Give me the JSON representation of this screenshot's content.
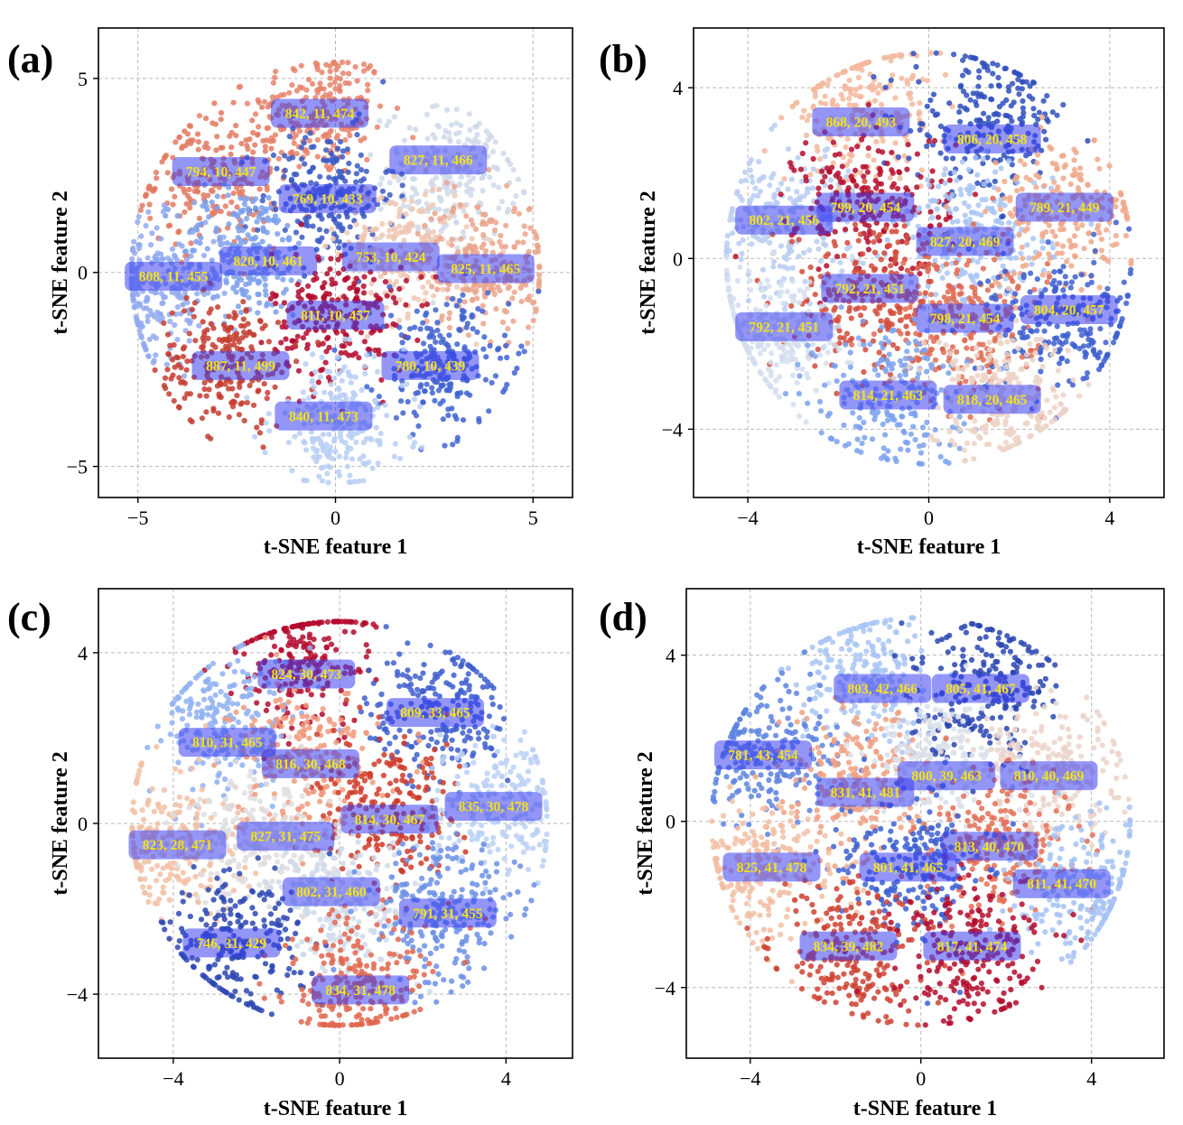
{
  "figure": {
    "description_free": true
  },
  "chart_data": [
    {
      "id": "a",
      "panel_label": "(a)",
      "type": "scatter",
      "xlabel": "t-SNE feature 1",
      "ylabel": "t-SNE feature 2",
      "xlim": [
        -6,
        6
      ],
      "ylim": [
        -5.8,
        6.3
      ],
      "xticks": [
        -5,
        0,
        5
      ],
      "yticks": [
        -5,
        0,
        5
      ],
      "xtick_labels": [
        "−5",
        "0",
        "5"
      ],
      "ytick_labels": [
        "−5",
        "0",
        "5"
      ],
      "grid": true,
      "clusters": [
        {
          "cx": -0.4,
          "cy": 4.1,
          "color": "#e8826a"
        },
        {
          "cx": -3.1,
          "cy": 2.4,
          "color": "#e27a62"
        },
        {
          "cx": 2.9,
          "cy": 2.5,
          "color": "#cfd9ea"
        },
        {
          "cx": -0.2,
          "cy": 2.0,
          "color": "#3a59c4"
        },
        {
          "cx": -2.3,
          "cy": 0.5,
          "color": "#7da0ec"
        },
        {
          "cx": -4.5,
          "cy": -0.4,
          "color": "#92aaf0"
        },
        {
          "cx": 1.8,
          "cy": 0.6,
          "color": "#efc8b4"
        },
        {
          "cx": 3.8,
          "cy": 0.2,
          "color": "#eaa58c"
        },
        {
          "cx": 0.1,
          "cy": -1.1,
          "color": "#b40b2e"
        },
        {
          "cx": -2.8,
          "cy": -2.3,
          "color": "#c43d30"
        },
        {
          "cx": 2.7,
          "cy": -2.4,
          "color": "#3f63d2"
        },
        {
          "cx": 0.1,
          "cy": -3.9,
          "color": "#b8cff5"
        }
      ],
      "annotations": [
        {
          "x": -0.4,
          "y": 4.1,
          "text": "842, 11, 474"
        },
        {
          "x": -2.9,
          "y": 2.6,
          "text": "794, 10, 447"
        },
        {
          "x": 2.6,
          "y": 2.9,
          "text": "827, 11, 466"
        },
        {
          "x": -0.2,
          "y": 1.9,
          "text": "769, 10, 433"
        },
        {
          "x": -1.7,
          "y": 0.3,
          "text": "820, 10, 461"
        },
        {
          "x": -4.1,
          "y": -0.1,
          "text": "808, 11, 455"
        },
        {
          "x": 1.4,
          "y": 0.4,
          "text": "753, 10, 424"
        },
        {
          "x": 3.8,
          "y": 0.1,
          "text": "825, 11, 465"
        },
        {
          "x": 0.0,
          "y": -1.1,
          "text": "811, 10, 457"
        },
        {
          "x": -2.4,
          "y": -2.4,
          "text": "887, 11, 499"
        },
        {
          "x": 2.4,
          "y": -2.4,
          "text": "780, 10, 439"
        },
        {
          "x": -0.3,
          "y": -3.7,
          "text": "840, 11, 473"
        }
      ]
    },
    {
      "id": "b",
      "panel_label": "(b)",
      "type": "scatter",
      "xlabel": "t-SNE feature 1",
      "ylabel": "t-SNE feature 2",
      "xlim": [
        -5.2,
        5.2
      ],
      "ylim": [
        -5.6,
        5.4
      ],
      "xticks": [
        -4,
        0,
        4
      ],
      "yticks": [
        -4,
        0,
        4
      ],
      "xtick_labels": [
        "−4",
        "0",
        "4"
      ],
      "ytick_labels": [
        "−4",
        "0",
        "4"
      ],
      "grid": true,
      "clusters": [
        {
          "cx": -1.5,
          "cy": 3.4,
          "color": "#f3b99e"
        },
        {
          "cx": 1.3,
          "cy": 3.2,
          "color": "#2f4fbd"
        },
        {
          "cx": -3.2,
          "cy": 0.9,
          "color": "#b9cdf1"
        },
        {
          "cx": -1.2,
          "cy": 1.3,
          "color": "#b50c2c"
        },
        {
          "cx": 1.0,
          "cy": 0.5,
          "color": "#a9c5f6"
        },
        {
          "cx": 3.0,
          "cy": 1.0,
          "color": "#f0a88a"
        },
        {
          "cx": -1.3,
          "cy": -0.8,
          "color": "#d24a3a"
        },
        {
          "cx": 0.8,
          "cy": -1.4,
          "color": "#e16b52"
        },
        {
          "cx": 3.0,
          "cy": -1.5,
          "color": "#3d5fd0"
        },
        {
          "cx": -3.4,
          "cy": -1.8,
          "color": "#d4deee"
        },
        {
          "cx": -0.8,
          "cy": -3.2,
          "color": "#7aa1ee"
        },
        {
          "cx": 1.6,
          "cy": -3.2,
          "color": "#ecd2c6"
        }
      ],
      "annotations": [
        {
          "x": -1.5,
          "y": 3.2,
          "text": "868, 20, 493"
        },
        {
          "x": 1.4,
          "y": 2.8,
          "text": "806, 20, 458"
        },
        {
          "x": -3.2,
          "y": 0.9,
          "text": "802, 21, 456"
        },
        {
          "x": -1.4,
          "y": 1.2,
          "text": "799, 20, 454"
        },
        {
          "x": 3.0,
          "y": 1.2,
          "text": "789, 21, 449"
        },
        {
          "x": 0.8,
          "y": 0.4,
          "text": "827, 20, 469"
        },
        {
          "x": -1.3,
          "y": -0.7,
          "text": "792, 21, 451"
        },
        {
          "x": 0.8,
          "y": -1.4,
          "text": "798, 21, 454"
        },
        {
          "x": 3.1,
          "y": -1.2,
          "text": "804, 20, 457"
        },
        {
          "x": -3.2,
          "y": -1.6,
          "text": "792, 21, 451"
        },
        {
          "x": -0.9,
          "y": -3.2,
          "text": "814, 21, 463"
        },
        {
          "x": 1.4,
          "y": -3.3,
          "text": "818, 20, 465"
        }
      ]
    },
    {
      "id": "c",
      "panel_label": "(c)",
      "type": "scatter",
      "xlabel": "t-SNE feature 1",
      "ylabel": "t-SNE feature 2",
      "xlim": [
        -5.8,
        5.6
      ],
      "ylim": [
        -5.5,
        5.5
      ],
      "xticks": [
        -4,
        0,
        4
      ],
      "yticks": [
        -4,
        0,
        4
      ],
      "xtick_labels": [
        "−4",
        "0",
        "4"
      ],
      "ytick_labels": [
        "−4",
        "0",
        "4"
      ],
      "grid": true,
      "clusters": [
        {
          "cx": -0.9,
          "cy": 3.9,
          "color": "#b40a2d"
        },
        {
          "cx": 2.4,
          "cy": 2.6,
          "color": "#3e5ecf"
        },
        {
          "cx": -2.7,
          "cy": 2.3,
          "color": "#8fb0f2"
        },
        {
          "cx": -0.8,
          "cy": 1.5,
          "color": "#f09a7c"
        },
        {
          "cx": 1.2,
          "cy": 0.2,
          "color": "#cf3c2c"
        },
        {
          "cx": 3.8,
          "cy": 0.4,
          "color": "#bbd0f5"
        },
        {
          "cx": -4.0,
          "cy": -0.4,
          "color": "#f2bfa4"
        },
        {
          "cx": -1.9,
          "cy": -0.3,
          "color": "#dfdde0"
        },
        {
          "cx": 0.1,
          "cy": -1.8,
          "color": "#cfd9ea"
        },
        {
          "cx": 2.6,
          "cy": -2.1,
          "color": "#6b8fe6"
        },
        {
          "cx": -2.6,
          "cy": -2.8,
          "color": "#2b47b3"
        },
        {
          "cx": 0.4,
          "cy": -3.9,
          "color": "#e0664f"
        }
      ],
      "annotations": [
        {
          "x": -0.8,
          "y": 3.5,
          "text": "824, 30, 473"
        },
        {
          "x": 2.3,
          "y": 2.6,
          "text": "809, 33, 465"
        },
        {
          "x": -2.7,
          "y": 1.9,
          "text": "810, 31, 465"
        },
        {
          "x": -0.7,
          "y": 1.4,
          "text": "816, 30, 468"
        },
        {
          "x": 3.7,
          "y": 0.4,
          "text": "835, 30, 478"
        },
        {
          "x": 1.2,
          "y": 0.1,
          "text": "814, 30, 467"
        },
        {
          "x": -1.3,
          "y": -0.3,
          "text": "827, 31, 475"
        },
        {
          "x": -3.9,
          "y": -0.5,
          "text": "823, 28, 471"
        },
        {
          "x": -0.2,
          "y": -1.6,
          "text": "802, 31, 460"
        },
        {
          "x": 2.6,
          "y": -2.1,
          "text": "791, 31, 455"
        },
        {
          "x": -2.6,
          "y": -2.8,
          "text": "746, 31, 429"
        },
        {
          "x": 0.5,
          "y": -3.9,
          "text": "834, 31, 478"
        }
      ]
    },
    {
      "id": "d",
      "panel_label": "(d)",
      "type": "scatter",
      "xlabel": "t-SNE feature 1",
      "ylabel": "t-SNE feature 2",
      "xlim": [
        -5.5,
        5.7
      ],
      "ylim": [
        -5.7,
        5.6
      ],
      "xticks": [
        -4,
        0,
        4
      ],
      "yticks": [
        -4,
        0,
        4
      ],
      "xtick_labels": [
        "−4",
        "0",
        "4"
      ],
      "ytick_labels": [
        "−4",
        "0",
        "4"
      ],
      "grid": true,
      "clusters": [
        {
          "cx": -1.2,
          "cy": 3.5,
          "color": "#a9c5f6"
        },
        {
          "cx": 1.5,
          "cy": 3.3,
          "color": "#2a45b1"
        },
        {
          "cx": -3.6,
          "cy": 1.6,
          "color": "#5d84e0"
        },
        {
          "cx": -1.5,
          "cy": 1.0,
          "color": "#f0a083"
        },
        {
          "cx": 0.5,
          "cy": 1.5,
          "color": "#d9e0ea"
        },
        {
          "cx": 3.2,
          "cy": 1.2,
          "color": "#ebd4c9"
        },
        {
          "cx": 1.9,
          "cy": -0.5,
          "color": "#e46f56"
        },
        {
          "cx": -0.2,
          "cy": -1.0,
          "color": "#3c60d3"
        },
        {
          "cx": -3.6,
          "cy": -1.2,
          "color": "#f2bea3"
        },
        {
          "cx": 3.8,
          "cy": -1.6,
          "color": "#a5c2f4"
        },
        {
          "cx": -1.6,
          "cy": -3.2,
          "color": "#ce4232"
        },
        {
          "cx": 1.2,
          "cy": -3.2,
          "color": "#b40a2c"
        }
      ],
      "annotations": [
        {
          "x": -0.9,
          "y": 3.2,
          "text": "803, 42, 466"
        },
        {
          "x": 1.4,
          "y": 3.2,
          "text": "805, 41, 467"
        },
        {
          "x": -3.7,
          "y": 1.6,
          "text": "781, 43, 454"
        },
        {
          "x": 0.6,
          "y": 1.1,
          "text": "800, 39, 463"
        },
        {
          "x": 3.0,
          "y": 1.1,
          "text": "810, 40, 469"
        },
        {
          "x": -1.3,
          "y": 0.7,
          "text": "831, 41, 481"
        },
        {
          "x": 1.6,
          "y": -0.6,
          "text": "813, 40, 470"
        },
        {
          "x": -3.5,
          "y": -1.1,
          "text": "825, 41, 478"
        },
        {
          "x": -0.3,
          "y": -1.1,
          "text": "801, 41, 465"
        },
        {
          "x": 3.3,
          "y": -1.5,
          "text": "811, 41, 470"
        },
        {
          "x": -1.7,
          "y": -3.0,
          "text": "834, 39, 482"
        },
        {
          "x": 1.2,
          "y": -3.0,
          "text": "817, 41, 474"
        }
      ]
    }
  ]
}
